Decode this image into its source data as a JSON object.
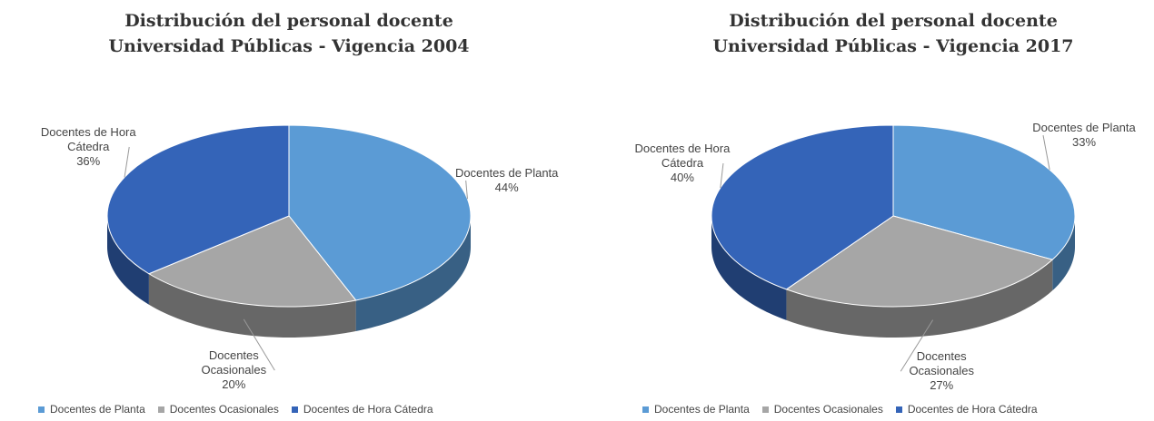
{
  "chart_data": [
    {
      "type": "pie",
      "title": "Distribución del personal docente",
      "subtitle": "Universidad Públicas - Vigencia 2004",
      "categories": [
        "Docentes de Planta",
        "Docentes Ocasionales",
        "Docentes de Hora Cátedra"
      ],
      "values": [
        44,
        20,
        36
      ],
      "value_labels": [
        "44%",
        "20%",
        "36%"
      ],
      "colors": [
        "#5b9bd5",
        "#a6a6a6",
        "#3464b8"
      ],
      "legend": "bottom"
    },
    {
      "type": "pie",
      "title": "Distribución del personal docente",
      "subtitle": "Universidad Públicas - Vigencia 2017",
      "categories": [
        "Docentes de Planta",
        "Docentes Ocasionales",
        "Docentes de Hora Cátedra"
      ],
      "values": [
        33,
        27,
        40
      ],
      "value_labels": [
        "33%",
        "27%",
        "40%"
      ],
      "colors": [
        "#5b9bd5",
        "#a6a6a6",
        "#3464b8"
      ],
      "legend": "bottom"
    }
  ]
}
